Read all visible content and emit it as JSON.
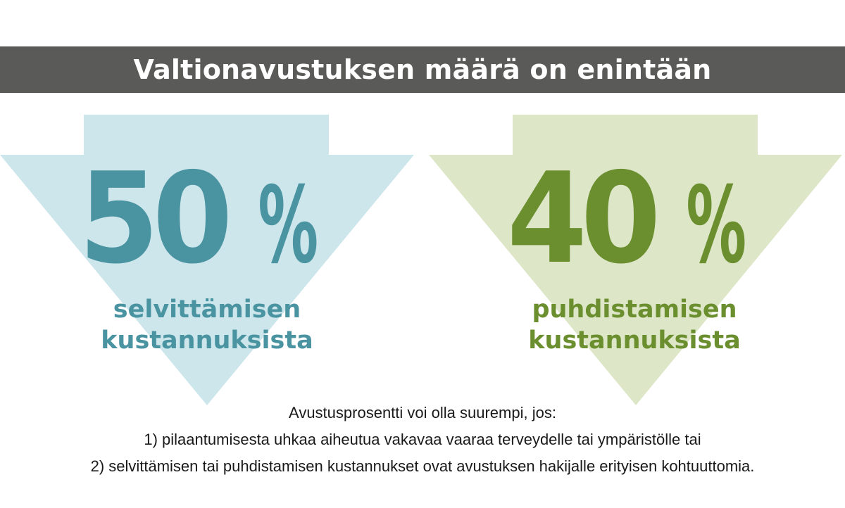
{
  "header": {
    "title": "Valtionavustuksen määrä on enintään"
  },
  "blocks": [
    {
      "percent": "50",
      "percent_sign": "%",
      "line1": "selvittämisen",
      "line2": "kustannuksista",
      "text_color": "#4a94a2",
      "arrow_color": "#cde6ec"
    },
    {
      "percent": "40",
      "percent_sign": "%",
      "line1": "puhdistamisen",
      "line2": "kustannuksista",
      "text_color": "#6b8f2f",
      "arrow_color": "#dde7c8"
    }
  ],
  "notes": {
    "line1": "Avustusprosentti voi olla suurempi, jos:",
    "line2": "1) pilaantumisesta uhkaa aiheutua vakavaa vaaraa terveydelle tai ympäristölle tai",
    "line3": "2) selvittämisen tai puhdistamisen kustannukset ovat avustuksen hakijalle erityisen kohtuuttomia."
  },
  "colors": {
    "title_bar": "#5a5a58",
    "title_text": "#ffffff",
    "notes_text": "#1a1a1a"
  }
}
